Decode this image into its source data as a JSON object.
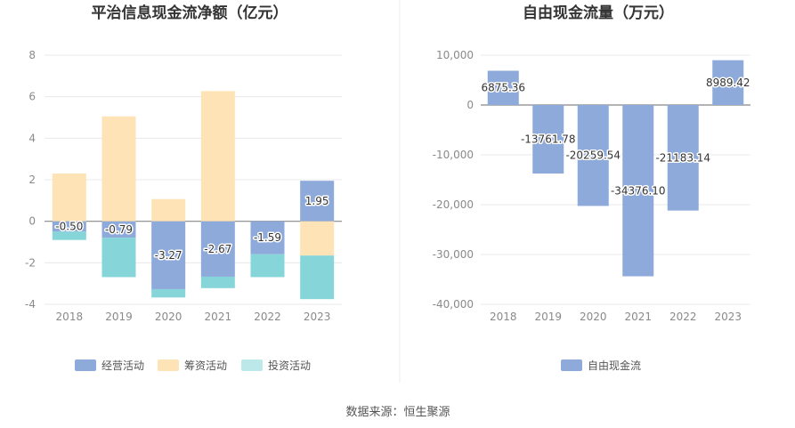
{
  "source": "数据来源：恒生聚源",
  "charts": [
    {
      "id": "left",
      "type": "bar",
      "stacked": true,
      "title": "平治信息现金流净额（亿元）",
      "categories": [
        "2018",
        "2019",
        "2020",
        "2021",
        "2022",
        "2023"
      ],
      "ylim": [
        -4,
        8
      ],
      "yticks": [
        -4,
        -2,
        0,
        2,
        4,
        6,
        8
      ],
      "ytick_labels": [
        "-4",
        "-2",
        "0",
        "2",
        "4",
        "6",
        "8"
      ],
      "series": [
        {
          "name": "经营活动",
          "color": "#8eaadb",
          "values": [
            -0.5,
            -0.79,
            -3.27,
            -2.67,
            -1.59,
            1.95
          ],
          "labels": [
            "-0.50",
            "-0.79",
            "-3.27",
            "-2.67",
            "-1.59",
            "1.95"
          ]
        },
        {
          "name": "筹资活动",
          "color": "#fde3b5",
          "values": [
            2.3,
            5.05,
            1.07,
            6.27,
            0.0,
            -1.65
          ]
        },
        {
          "name": "投资活动",
          "color": "#86d5d9",
          "values": [
            -0.4,
            -1.9,
            -0.4,
            -0.55,
            -1.1,
            -2.1
          ]
        }
      ],
      "legend": [
        {
          "name": "经营活动",
          "color": "#8eaadb"
        },
        {
          "name": "筹资活动",
          "color": "#fde3b5"
        },
        {
          "name": "投资活动",
          "color": "#bde8ea"
        }
      ]
    },
    {
      "id": "right",
      "type": "bar",
      "title": "自由现金流量（万元）",
      "categories": [
        "2018",
        "2019",
        "2020",
        "2021",
        "2022",
        "2023"
      ],
      "ylim": [
        -40000,
        10000
      ],
      "yticks": [
        -40000,
        -30000,
        -20000,
        -10000,
        0,
        10000
      ],
      "ytick_labels": [
        "-40,000",
        "-30,000",
        "-20,000",
        "-10,000",
        "0",
        "10,000"
      ],
      "series": [
        {
          "name": "自由现金流",
          "color": "#8eaadb",
          "values": [
            6875.36,
            -13761.78,
            -20259.54,
            -34376.1,
            -21183.14,
            8989.42
          ],
          "labels": [
            "6875.36",
            "-13761.78",
            "-20259.54",
            "-34376.10",
            "-21183.14",
            "8989.42"
          ]
        }
      ],
      "legend": [
        {
          "name": "自由现金流",
          "color": "#8eaadb"
        }
      ]
    }
  ]
}
